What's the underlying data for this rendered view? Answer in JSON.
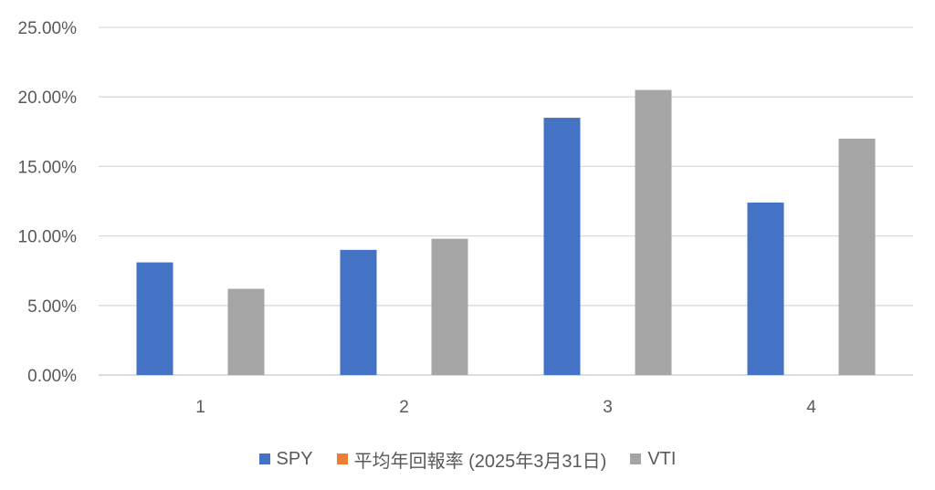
{
  "chart_data": {
    "type": "bar",
    "categories": [
      "1",
      "2",
      "3",
      "4"
    ],
    "series": [
      {
        "name": "SPY",
        "color": "#4472C4",
        "values": [
          8.1,
          9.0,
          18.5,
          12.4
        ]
      },
      {
        "name": "平均年回報率 (2025年3月31日)",
        "color": "#ED7D31",
        "values": [
          null,
          null,
          null,
          null
        ]
      },
      {
        "name": "VTI",
        "color": "#A5A5A5",
        "values": [
          6.2,
          9.8,
          20.5,
          17.0
        ]
      }
    ],
    "ylim": [
      0,
      25
    ],
    "yticks": [
      "0.00%",
      "5.00%",
      "10.00%",
      "15.00%",
      "20.00%",
      "25.00%"
    ],
    "title": "",
    "xlabel": "",
    "ylabel": "",
    "grid": true,
    "legend_position": "bottom"
  }
}
